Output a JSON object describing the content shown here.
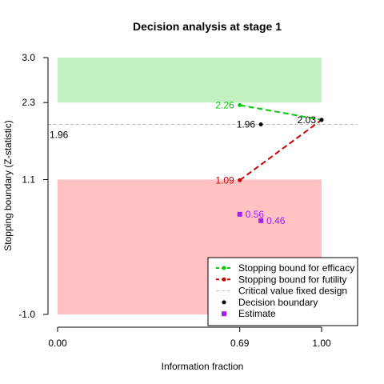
{
  "chart_data": {
    "type": "line",
    "title": "Decision analysis at stage 1",
    "xlabel": "Information fraction",
    "ylabel": "Stopping boundary (Z-statistic)",
    "xlim": [
      0,
      1.1
    ],
    "ylim": [
      -1.0,
      3.0
    ],
    "x_ticks": [
      {
        "value": 0.0,
        "label": "0.00"
      },
      {
        "value": 0.69,
        "label": "0.69"
      },
      {
        "value": 1.0,
        "label": "1.00"
      }
    ],
    "y_ticks": [
      {
        "value": -1.0,
        "label": "-1.0"
      },
      {
        "value": 1.1,
        "label": "1.1"
      },
      {
        "value": 2.3,
        "label": "2.3"
      },
      {
        "value": 3.0,
        "label": "3.0"
      }
    ],
    "regions": [
      {
        "name": "efficacy-region",
        "color": "#c1f1c1",
        "x": [
          0,
          1.0
        ],
        "y": [
          2.3,
          3.0
        ]
      },
      {
        "name": "futility-region",
        "color": "#ffc1c1",
        "x": [
          0,
          1.0
        ],
        "y": [
          -1.0,
          1.1
        ]
      }
    ],
    "fixed_critical_value": {
      "value": 1.96,
      "label": "1.96",
      "color": "#bebebe"
    },
    "series": [
      {
        "name": "Stopping bound for efficacy",
        "color": "#00cd00",
        "style": "dashed",
        "points": [
          {
            "x": 0.69,
            "y": 2.26,
            "label": "2.26"
          },
          {
            "x": 1.0,
            "y": 2.03,
            "label": ""
          }
        ]
      },
      {
        "name": "Stopping bound for futility",
        "color": "#cd0000",
        "style": "dashed",
        "points": [
          {
            "x": 0.69,
            "y": 1.09,
            "label": "1.09"
          },
          {
            "x": 1.0,
            "y": 2.03,
            "label": ""
          }
        ]
      },
      {
        "name": "Decision boundary",
        "color": "#000000",
        "style": "points",
        "points": [
          {
            "x": 0.77,
            "y": 1.96,
            "label": "1.96"
          },
          {
            "x": 1.0,
            "y": 2.03,
            "label": "2.03"
          }
        ]
      },
      {
        "name": "Estimate",
        "color": "#a020f0",
        "style": "squares",
        "points": [
          {
            "x": 0.69,
            "y": 0.56,
            "label": "0.56"
          },
          {
            "x": 0.77,
            "y": 0.46,
            "label": "0.46"
          }
        ]
      }
    ],
    "legend": {
      "position": "bottom-right",
      "entries": [
        {
          "label": "Stopping bound for efficacy",
          "color": "#00cd00",
          "marker": "line-dot"
        },
        {
          "label": "Stopping bound for futility",
          "color": "#cd0000",
          "marker": "line-dot"
        },
        {
          "label": "Critical value fixed design",
          "color": "#bebebe",
          "marker": "dash"
        },
        {
          "label": "Decision boundary",
          "color": "#000000",
          "marker": "dot"
        },
        {
          "label": "Estimate",
          "color": "#a020f0",
          "marker": "square"
        }
      ]
    }
  }
}
